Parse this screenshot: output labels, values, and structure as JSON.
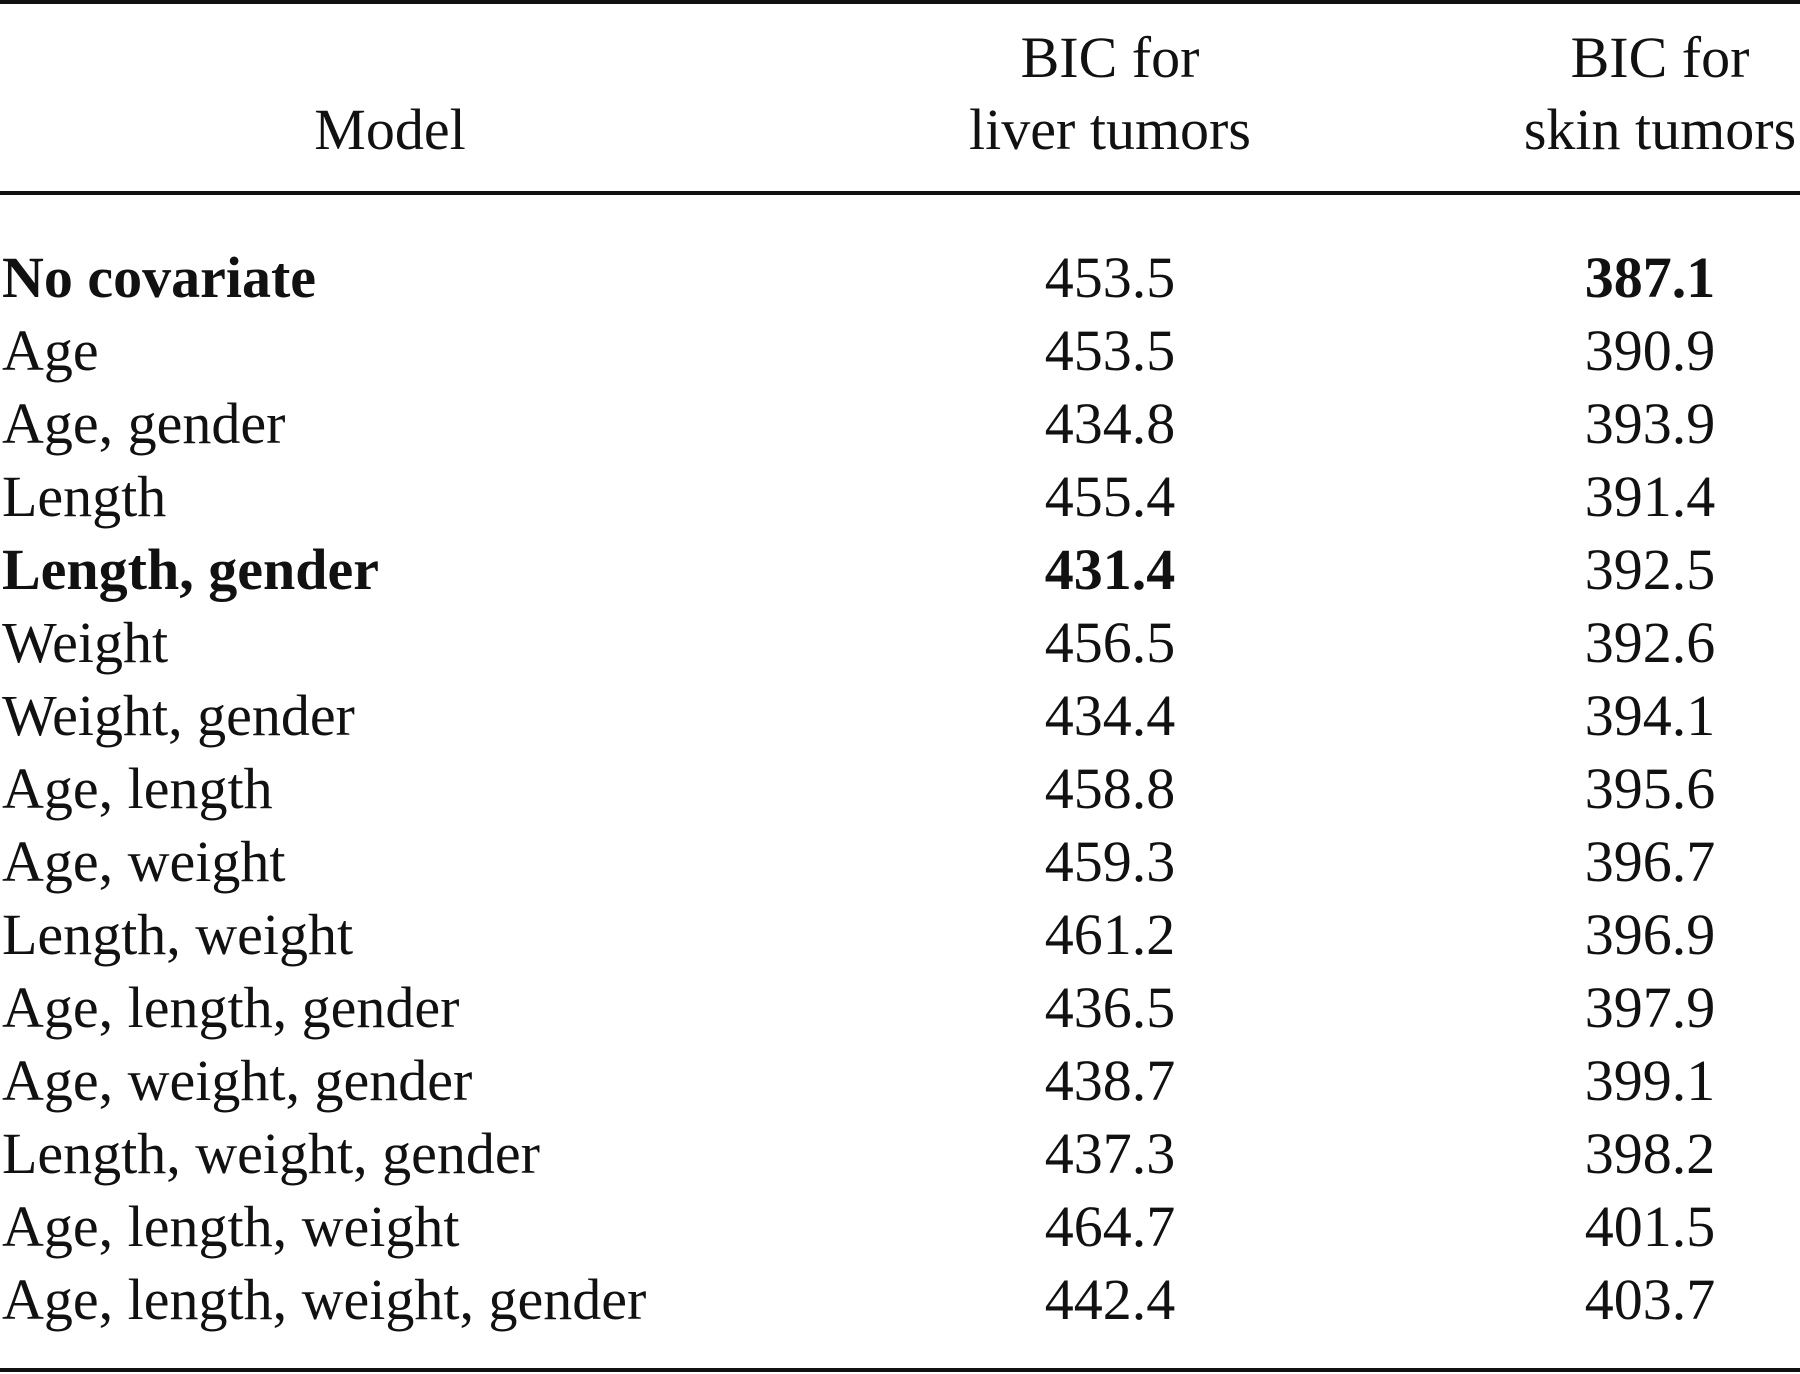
{
  "table": {
    "headers": {
      "model": "Model",
      "liver": [
        "BIC for",
        "liver tumors"
      ],
      "skin": [
        "BIC for",
        "skin tumors"
      ]
    },
    "rows": [
      {
        "model": "No covariate",
        "liver": "453.5",
        "skin": "387.1",
        "bold_model": true,
        "bold_liver": false,
        "bold_skin": true
      },
      {
        "model": "Age",
        "liver": "453.5",
        "skin": "390.9",
        "bold_model": false,
        "bold_liver": false,
        "bold_skin": false
      },
      {
        "model": "Age, gender",
        "liver": "434.8",
        "skin": "393.9",
        "bold_model": false,
        "bold_liver": false,
        "bold_skin": false
      },
      {
        "model": "Length",
        "liver": "455.4",
        "skin": "391.4",
        "bold_model": false,
        "bold_liver": false,
        "bold_skin": false
      },
      {
        "model": "Length, gender",
        "liver": "431.4",
        "skin": "392.5",
        "bold_model": true,
        "bold_liver": true,
        "bold_skin": false
      },
      {
        "model": "Weight",
        "liver": "456.5",
        "skin": "392.6",
        "bold_model": false,
        "bold_liver": false,
        "bold_skin": false
      },
      {
        "model": "Weight, gender",
        "liver": "434.4",
        "skin": "394.1",
        "bold_model": false,
        "bold_liver": false,
        "bold_skin": false
      },
      {
        "model": "Age, length",
        "liver": "458.8",
        "skin": "395.6",
        "bold_model": false,
        "bold_liver": false,
        "bold_skin": false
      },
      {
        "model": "Age, weight",
        "liver": "459.3",
        "skin": "396.7",
        "bold_model": false,
        "bold_liver": false,
        "bold_skin": false
      },
      {
        "model": "Length, weight",
        "liver": "461.2",
        "skin": "396.9",
        "bold_model": false,
        "bold_liver": false,
        "bold_skin": false
      },
      {
        "model": "Age, length, gender",
        "liver": "436.5",
        "skin": "397.9",
        "bold_model": false,
        "bold_liver": false,
        "bold_skin": false
      },
      {
        "model": "Age, weight, gender",
        "liver": "438.7",
        "skin": "399.1",
        "bold_model": false,
        "bold_liver": false,
        "bold_skin": false
      },
      {
        "model": "Length, weight, gender",
        "liver": "437.3",
        "skin": "398.2",
        "bold_model": false,
        "bold_liver": false,
        "bold_skin": false
      },
      {
        "model": "Age, length, weight",
        "liver": "464.7",
        "skin": "401.5",
        "bold_model": false,
        "bold_liver": false,
        "bold_skin": false
      },
      {
        "model": "Age, length, weight, gender",
        "liver": "442.4",
        "skin": "403.7",
        "bold_model": false,
        "bold_liver": false,
        "bold_skin": false
      }
    ]
  }
}
